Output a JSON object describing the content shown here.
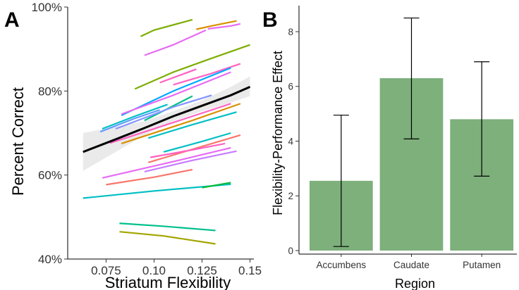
{
  "chart_data": [
    {
      "type": "line",
      "panel": "A",
      "xlabel": "Striatum Flexibility",
      "ylabel": "Percent Correct",
      "xlim": [
        0.055,
        0.152
      ],
      "ylim": [
        0.4,
        1.0
      ],
      "x_ticks": [
        0.075,
        0.1,
        0.125,
        0.15
      ],
      "x_tick_labels": [
        "0.075",
        "0.10",
        "0.125",
        "0.15"
      ],
      "y_ticks": [
        0.4,
        0.6,
        0.8,
        1.0
      ],
      "y_tick_labels": [
        "40%",
        "60%",
        "80%",
        "100%"
      ],
      "grid": false,
      "fit": {
        "color": "#000000",
        "points": [
          [
            0.063,
            0.655
          ],
          [
            0.08,
            0.685
          ],
          [
            0.095,
            0.712
          ],
          [
            0.11,
            0.74
          ],
          [
            0.125,
            0.765
          ],
          [
            0.14,
            0.79
          ],
          [
            0.15,
            0.81
          ]
        ],
        "band_upper": [
          [
            0.063,
            0.7
          ],
          [
            0.08,
            0.715
          ],
          [
            0.095,
            0.728
          ],
          [
            0.11,
            0.752
          ],
          [
            0.125,
            0.778
          ],
          [
            0.14,
            0.81
          ],
          [
            0.15,
            0.835
          ]
        ],
        "band_lower": [
          [
            0.063,
            0.61
          ],
          [
            0.08,
            0.655
          ],
          [
            0.095,
            0.695
          ],
          [
            0.11,
            0.728
          ],
          [
            0.125,
            0.752
          ],
          [
            0.14,
            0.772
          ],
          [
            0.15,
            0.788
          ]
        ]
      },
      "series": [
        {
          "color": "#7cae00",
          "points": [
            [
              0.093,
              0.93
            ],
            [
              0.1,
              0.945
            ],
            [
              0.12,
              0.97
            ]
          ]
        },
        {
          "color": "#d89000",
          "points": [
            [
              0.122,
              0.947
            ],
            [
              0.13,
              0.955
            ],
            [
              0.143,
              0.967
            ]
          ]
        },
        {
          "color": "#e76bf3",
          "points": [
            [
              0.128,
              0.948
            ],
            [
              0.14,
              0.955
            ],
            [
              0.145,
              0.96
            ]
          ]
        },
        {
          "color": "#e76bf3",
          "points": [
            [
              0.095,
              0.885
            ],
            [
              0.11,
              0.91
            ],
            [
              0.127,
              0.945
            ]
          ]
        },
        {
          "color": "#7cae00",
          "points": [
            [
              0.09,
              0.805
            ],
            [
              0.11,
              0.845
            ],
            [
              0.13,
              0.878
            ],
            [
              0.15,
              0.91
            ]
          ]
        },
        {
          "color": "#ff61c3",
          "points": [
            [
              0.103,
              0.82
            ],
            [
              0.122,
              0.852
            ]
          ]
        },
        {
          "color": "#ff61c3",
          "points": [
            [
              0.11,
              0.815
            ],
            [
              0.13,
              0.842
            ],
            [
              0.145,
              0.865
            ]
          ]
        },
        {
          "color": "#00a9ff",
          "points": [
            [
              0.083,
              0.742
            ],
            [
              0.11,
              0.8
            ],
            [
              0.14,
              0.855
            ]
          ]
        },
        {
          "color": "#e76bf3",
          "points": [
            [
              0.083,
              0.745
            ],
            [
              0.11,
              0.79
            ],
            [
              0.14,
              0.845
            ]
          ]
        },
        {
          "color": "#00bfc4",
          "points": [
            [
              0.073,
              0.71
            ],
            [
              0.09,
              0.74
            ],
            [
              0.107,
              0.768
            ]
          ]
        },
        {
          "color": "#619cff",
          "points": [
            [
              0.072,
              0.703
            ],
            [
              0.09,
              0.735
            ],
            [
              0.103,
              0.755
            ]
          ]
        },
        {
          "color": "#00c08b",
          "points": [
            [
              0.095,
              0.73
            ],
            [
              0.12,
              0.788
            ]
          ]
        },
        {
          "color": "#8494ff",
          "points": [
            [
              0.08,
              0.71
            ],
            [
              0.11,
              0.762
            ],
            [
              0.13,
              0.79
            ]
          ]
        },
        {
          "color": "#ff61c3",
          "points": [
            [
              0.077,
              0.676
            ],
            [
              0.11,
              0.725
            ],
            [
              0.14,
              0.77
            ]
          ]
        },
        {
          "color": "#d89000",
          "points": [
            [
              0.083,
              0.675
            ],
            [
              0.12,
              0.73
            ],
            [
              0.145,
              0.77
            ]
          ]
        },
        {
          "color": "#00bfc4",
          "points": [
            [
              0.097,
              0.688
            ],
            [
              0.12,
              0.72
            ],
            [
              0.143,
              0.75
            ]
          ]
        },
        {
          "color": "#00bfc4",
          "points": [
            [
              0.105,
              0.655
            ],
            [
              0.125,
              0.68
            ],
            [
              0.14,
              0.7
            ]
          ]
        },
        {
          "color": "#f8766d",
          "points": [
            [
              0.097,
              0.63
            ],
            [
              0.125,
              0.668
            ],
            [
              0.145,
              0.695
            ]
          ]
        },
        {
          "color": "#ff61c3",
          "points": [
            [
              0.098,
              0.642
            ],
            [
              0.12,
              0.66
            ],
            [
              0.137,
              0.675
            ]
          ]
        },
        {
          "color": "#c77cff",
          "points": [
            [
              0.095,
              0.608
            ],
            [
              0.12,
              0.635
            ],
            [
              0.143,
              0.657
            ]
          ]
        },
        {
          "color": "#e76bf3",
          "points": [
            [
              0.073,
              0.593
            ],
            [
              0.11,
              0.632
            ],
            [
              0.14,
              0.665
            ]
          ]
        },
        {
          "color": "#f8766d",
          "points": [
            [
              0.075,
              0.577
            ],
            [
              0.1,
              0.595
            ],
            [
              0.12,
              0.613
            ]
          ]
        },
        {
          "color": "#00bfc4",
          "points": [
            [
              0.063,
              0.545
            ],
            [
              0.1,
              0.562
            ],
            [
              0.14,
              0.578
            ]
          ]
        },
        {
          "color": "#00ba38",
          "points": [
            [
              0.125,
              0.57
            ],
            [
              0.14,
              0.582
            ]
          ]
        },
        {
          "color": "#00c08b",
          "points": [
            [
              0.082,
              0.485
            ],
            [
              0.105,
              0.478
            ],
            [
              0.132,
              0.468
            ]
          ]
        },
        {
          "color": "#a3a500",
          "points": [
            [
              0.082,
              0.465
            ],
            [
              0.105,
              0.455
            ],
            [
              0.132,
              0.436
            ]
          ]
        }
      ]
    },
    {
      "type": "bar",
      "panel": "B",
      "categories": [
        "Accumbens",
        "Caudate",
        "Putamen"
      ],
      "values": [
        2.55,
        6.3,
        4.8
      ],
      "error_low": [
        0.15,
        4.08,
        2.72
      ],
      "error_high": [
        4.95,
        8.5,
        6.9
      ],
      "xlabel": "Region",
      "ylabel": "Flexibility-Performance Effect",
      "ylim": [
        0,
        8.9
      ],
      "y_ticks": [
        0,
        2,
        4,
        6,
        8
      ],
      "y_tick_labels": [
        "0",
        "2",
        "4",
        "6",
        "8"
      ],
      "bar_color": "#7db07b",
      "grid": false
    }
  ],
  "panels": {
    "a_label": "A",
    "b_label": "B"
  }
}
